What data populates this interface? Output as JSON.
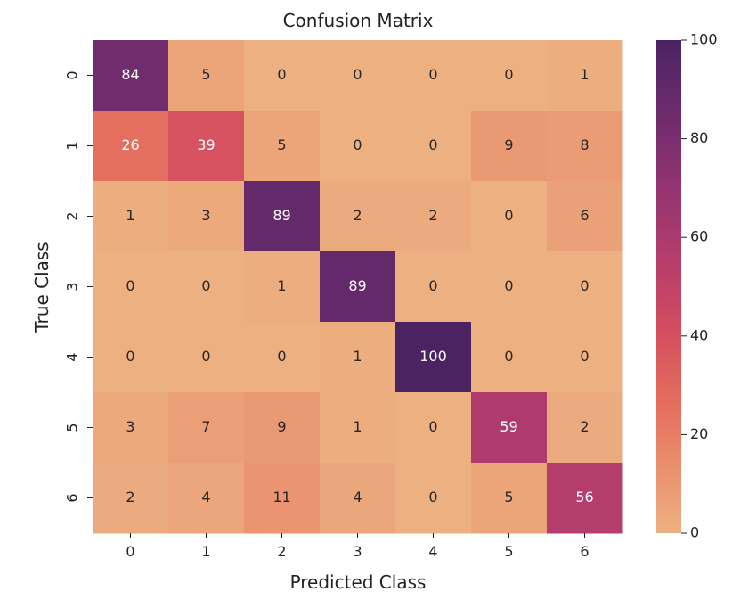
{
  "chart_data": {
    "type": "heatmap",
    "title": "Confusion Matrix",
    "xlabel": "Predicted Class",
    "ylabel": "True Class",
    "x_categories": [
      "0",
      "1",
      "2",
      "3",
      "4",
      "5",
      "6"
    ],
    "y_categories": [
      "0",
      "1",
      "2",
      "3",
      "4",
      "5",
      "6"
    ],
    "values": [
      [
        84,
        5,
        0,
        0,
        0,
        0,
        1
      ],
      [
        26,
        39,
        5,
        0,
        0,
        9,
        8
      ],
      [
        1,
        3,
        89,
        2,
        2,
        0,
        6
      ],
      [
        0,
        0,
        1,
        89,
        0,
        0,
        0
      ],
      [
        0,
        0,
        0,
        1,
        100,
        0,
        0
      ],
      [
        3,
        7,
        9,
        1,
        0,
        59,
        2
      ],
      [
        2,
        4,
        11,
        4,
        0,
        5,
        56
      ]
    ],
    "colorbar": {
      "min": 0,
      "max": 100,
      "ticks": [
        0,
        20,
        40,
        60,
        80,
        100
      ]
    },
    "colormap": "flare",
    "colors": [
      "#edb081",
      "#e98d6b",
      "#e3685c",
      "#d14a61",
      "#b13c6c",
      "#8f3371",
      "#6c2b6d",
      "#4b2362"
    ]
  }
}
